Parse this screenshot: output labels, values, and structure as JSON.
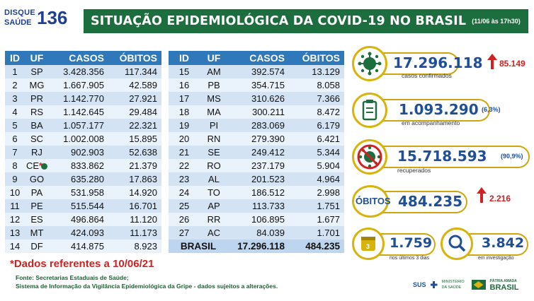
{
  "logo": {
    "line1": "DISQUE",
    "line2": "SAÚDE",
    "number": "136"
  },
  "title": {
    "text": "SITUAÇÃO EPIDEMIOLÓGICA DA COVID-19 NO BRASIL",
    "date": "(11/06 às 17h30)"
  },
  "table": {
    "headers": [
      "ID",
      "UF",
      "CASOS",
      "ÓBITOS"
    ],
    "left_rows": [
      [
        "1",
        "SP",
        "3.428.356",
        "117.344"
      ],
      [
        "2",
        "MG",
        "1.667.905",
        "42.589"
      ],
      [
        "3",
        "PR",
        "1.142.770",
        "27.921"
      ],
      [
        "4",
        "RS",
        "1.142.645",
        "29.484"
      ],
      [
        "5",
        "BA",
        "1.057.177",
        "22.321"
      ],
      [
        "6",
        "SC",
        "1.002.008",
        "15.895"
      ],
      [
        "7",
        "RJ",
        "902.903",
        "52.638"
      ],
      [
        "8",
        "CE",
        "833.862",
        "21.379"
      ],
      [
        "9",
        "GO",
        "635.280",
        "17.863"
      ],
      [
        "10",
        "PA",
        "531.958",
        "14.920"
      ],
      [
        "11",
        "PE",
        "515.544",
        "16.701"
      ],
      [
        "12",
        "ES",
        "496.864",
        "11.120"
      ],
      [
        "13",
        "MT",
        "424.093",
        "11.173"
      ],
      [
        "14",
        "DF",
        "414.875",
        "8.923"
      ]
    ],
    "right_rows": [
      [
        "15",
        "AM",
        "392.574",
        "13.129"
      ],
      [
        "16",
        "PB",
        "354.715",
        "8.058"
      ],
      [
        "17",
        "MS",
        "310.626",
        "7.366"
      ],
      [
        "18",
        "MA",
        "300.211",
        "8.472"
      ],
      [
        "19",
        "PI",
        "283.069",
        "6.179"
      ],
      [
        "20",
        "RN",
        "279.390",
        "6.421"
      ],
      [
        "21",
        "SE",
        "249.412",
        "5.344"
      ],
      [
        "22",
        "RO",
        "237.179",
        "5.904"
      ],
      [
        "23",
        "AL",
        "201.523",
        "4.964"
      ],
      [
        "24",
        "TO",
        "186.512",
        "2.998"
      ],
      [
        "25",
        "AP",
        "113.733",
        "1.751"
      ],
      [
        "26",
        "RR",
        "106.895",
        "1.677"
      ],
      [
        "27",
        "AC",
        "84.039",
        "1.701"
      ]
    ],
    "total": {
      "label": "BRASIL",
      "cases": "17.296.118",
      "deaths": "484.235"
    },
    "ce_marker": "*"
  },
  "note": "*Dados referentes a 10/06/21",
  "source": {
    "line1": "Fonte: Secretarias Estaduais de Saúde;",
    "line2": "Sistema de Informação da Vigilância Epidemiológica da Gripe - dados sujeitos a alterações."
  },
  "stats": {
    "confirmed": {
      "value": "17.296.118",
      "label": "casos confirmados",
      "delta": "85.149"
    },
    "monitoring": {
      "value": "1.093.290",
      "pct": "(6,3%)",
      "label": "em acompanhamento"
    },
    "recovered": {
      "value": "15.718.593",
      "pct": "(90,9%)",
      "label": "recuperados"
    },
    "deaths": {
      "label": "ÓBITOS",
      "value": "484.235",
      "delta": "2.216"
    },
    "recent": {
      "value": "1.759",
      "label": "nos últimos 3 dias",
      "badge": "3"
    },
    "investigation": {
      "value": "3.842",
      "label": "em investigação"
    }
  },
  "footer": {
    "sus": "SUS",
    "ministry": "MINISTÉRIO DA SAÚDE",
    "gov_top": "PÁTRIA AMADA",
    "gov": "BRASIL"
  },
  "colors": {
    "green": "#1c6e3e",
    "blue": "#2f78b9",
    "gold": "#d7b30c",
    "red": "#d42020"
  }
}
